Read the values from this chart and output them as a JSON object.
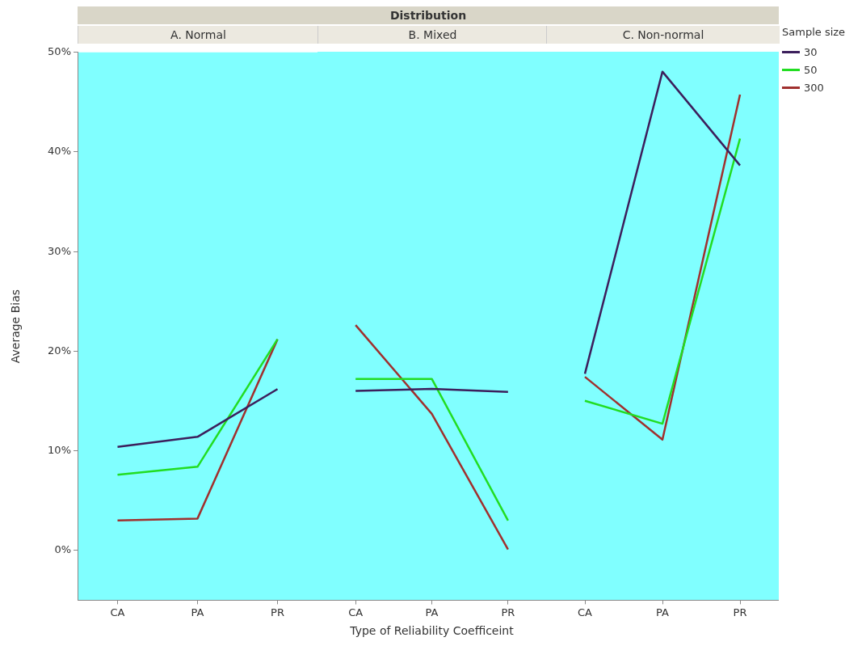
{
  "chart_data": [
    {
      "type": "line",
      "subtitle": "A. Normal",
      "ylabel": "Average Bias",
      "categories": [
        "CA",
        "PA",
        "PR"
      ],
      "ylim": [
        -5,
        50
      ],
      "yticks": [
        {
          "value": 0,
          "label": "0%"
        },
        {
          "value": 10,
          "label": "10%"
        },
        {
          "value": 20,
          "label": "20%"
        },
        {
          "value": 30,
          "label": "30%"
        },
        {
          "value": 40,
          "label": "40%"
        },
        {
          "value": 50,
          "label": "50%"
        }
      ],
      "series": [
        {
          "color": "#3c1f5c",
          "values": [
            10.4,
            11.4,
            16.2
          ]
        },
        {
          "color": "#22dd22",
          "values": [
            7.6,
            8.4,
            21.2
          ]
        },
        {
          "color": "#a0302e",
          "values": [
            3.0,
            3.2,
            21.2
          ]
        }
      ]
    },
    {
      "type": "line",
      "title": "Distribution",
      "subtitle": "B. Mixed",
      "xlabel": "Type of Reliability Coefficeint",
      "categories": [
        "CA",
        "PA",
        "PR"
      ],
      "ylim": [
        -5,
        50
      ],
      "tick_labels": "x",
      "series": [
        {
          "color": "#3c1f5c",
          "values": [
            16.0,
            16.2,
            15.9
          ]
        },
        {
          "color": "#22dd22",
          "values": [
            17.2,
            17.2,
            3.0
          ]
        },
        {
          "color": "#a0302e",
          "values": [
            22.6,
            13.7,
            0.1
          ]
        }
      ]
    },
    {
      "type": "line",
      "subtitle": "C. Non-normal",
      "categories": [
        "CA",
        "PA",
        "PR"
      ],
      "ylim": [
        -5,
        50
      ],
      "tick_labels": "x",
      "legend": "right",
      "legend_title": "Sample size",
      "series": [
        {
          "name": "30",
          "color": "#3c1f5c",
          "values": [
            17.7,
            48.0,
            38.6
          ]
        },
        {
          "name": "50",
          "color": "#22dd22",
          "values": [
            15.0,
            12.7,
            41.3
          ]
        },
        {
          "name": "300",
          "color": "#a0302e",
          "values": [
            17.4,
            11.1,
            45.7
          ]
        }
      ]
    }
  ]
}
